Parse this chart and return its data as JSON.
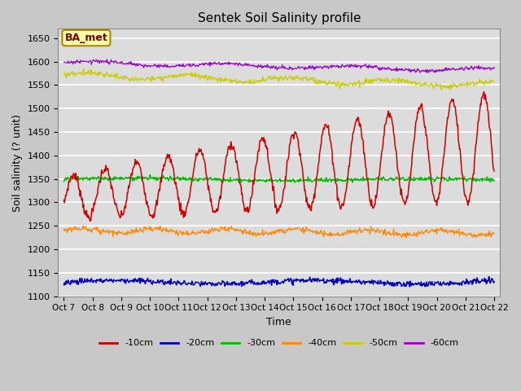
{
  "title": "Sentek Soil Salinity profile",
  "xlabel": "Time",
  "ylabel": "Soil salinity (? unit)",
  "ylim": [
    1100,
    1670
  ],
  "yticks": [
    1100,
    1150,
    1200,
    1250,
    1300,
    1350,
    1400,
    1450,
    1500,
    1550,
    1600,
    1650
  ],
  "annotation": "BA_met",
  "line_colors": {
    "-10cm": "#cc0000",
    "-20cm": "#0000bb",
    "-30cm": "#00bb00",
    "-40cm": "#ff8800",
    "-50cm": "#cccc00",
    "-60cm": "#9900cc"
  },
  "x_labels": [
    "Oct 7",
    "Oct 8",
    "Oct 9",
    "Oct 10",
    "Oct 11",
    "Oct 12",
    "Oct 13",
    "Oct 14",
    "Oct 15",
    "Oct 16",
    "Oct 17",
    "Oct 18",
    "Oct 19",
    "Oct 20",
    "Oct 21",
    "Oct 22"
  ],
  "n_points": 720
}
